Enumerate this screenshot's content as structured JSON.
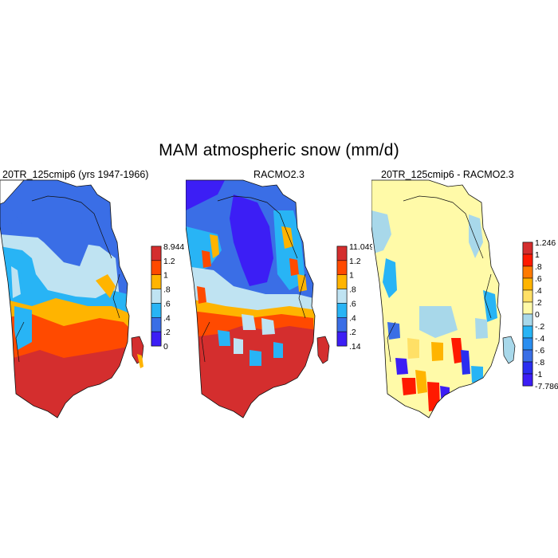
{
  "title": "MAM atmospheric snow (mm/d)",
  "panels": [
    {
      "title": "20TR_125cmip6 (yrs 1947-1966)",
      "colorbar": {
        "labels": [
          "8.944",
          "1.2",
          "1",
          ".8",
          ".6",
          ".4",
          ".2",
          "0"
        ],
        "colors": [
          "#d42e2e",
          "#ff4a00",
          "#ffb400",
          "#bfe3f2",
          "#28b4f5",
          "#3a6ee6",
          "#3c1ef5"
        ]
      }
    },
    {
      "title": "RACMO2.3",
      "colorbar": {
        "labels": [
          "11.049",
          "1.2",
          "1",
          ".8",
          ".6",
          ".4",
          ".2",
          ".14"
        ],
        "colors": [
          "#d42e2e",
          "#ff4a00",
          "#ffb400",
          "#bfe3f2",
          "#28b4f5",
          "#3a6ee6",
          "#3c1ef5"
        ]
      }
    },
    {
      "title": "20TR_125cmip6 - RACMO2.3",
      "colorbar": {
        "labels": [
          "1.246",
          "1",
          ".8",
          ".6",
          ".4",
          ".2",
          "0",
          "-.2",
          "-.4",
          "-.6",
          "-.8",
          "-1",
          "-7.786"
        ],
        "colors": [
          "#d42e2e",
          "#ff1a00",
          "#ff7a00",
          "#ffb400",
          "#ffe066",
          "#fffaa8",
          "#a8d8ea",
          "#28b4f5",
          "#2a8ef0",
          "#3a6ee6",
          "#2a2ef0",
          "#3c1ef5"
        ]
      }
    }
  ]
}
